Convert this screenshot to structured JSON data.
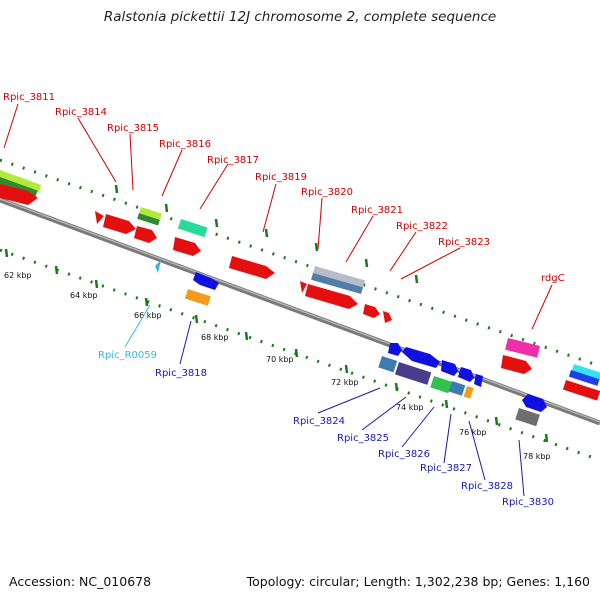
{
  "title": "Ralstonia pickettii 12J chromosome 2, complete sequence",
  "footer": {
    "accession": "Accession: NC_010678",
    "topology": "Topology: circular; Length: 1,302,238 bp; Genes: 1,160"
  },
  "colors": {
    "forward_label": "#cc0000",
    "reverse_label": "#1a1aaa",
    "rna_label": "#33bbdd",
    "backbone": "#808080",
    "tick": "#1a7a1a"
  },
  "kbp_marks": [
    "62 kbp",
    "64 kbp",
    "66 kbp",
    "68 kbp",
    "70 kbp",
    "72 kbp",
    "74 kbp",
    "76 kbp",
    "78 kbp"
  ],
  "forward_labels": [
    "Rpic_3811",
    "Rpic_3814",
    "Rpic_3815",
    "Rpic_3816",
    "Rpic_3817",
    "Rpic_3819",
    "Rpic_3820",
    "Rpic_3821",
    "Rpic_3822",
    "Rpic_3823",
    "rdgC"
  ],
  "reverse_labels": [
    "Rpic_R0059",
    "Rpic_3818",
    "Rpic_3824",
    "Rpic_3825",
    "Rpic_3826",
    "Rpic_3827",
    "Rpic_3828",
    "Rpic_3830"
  ]
}
